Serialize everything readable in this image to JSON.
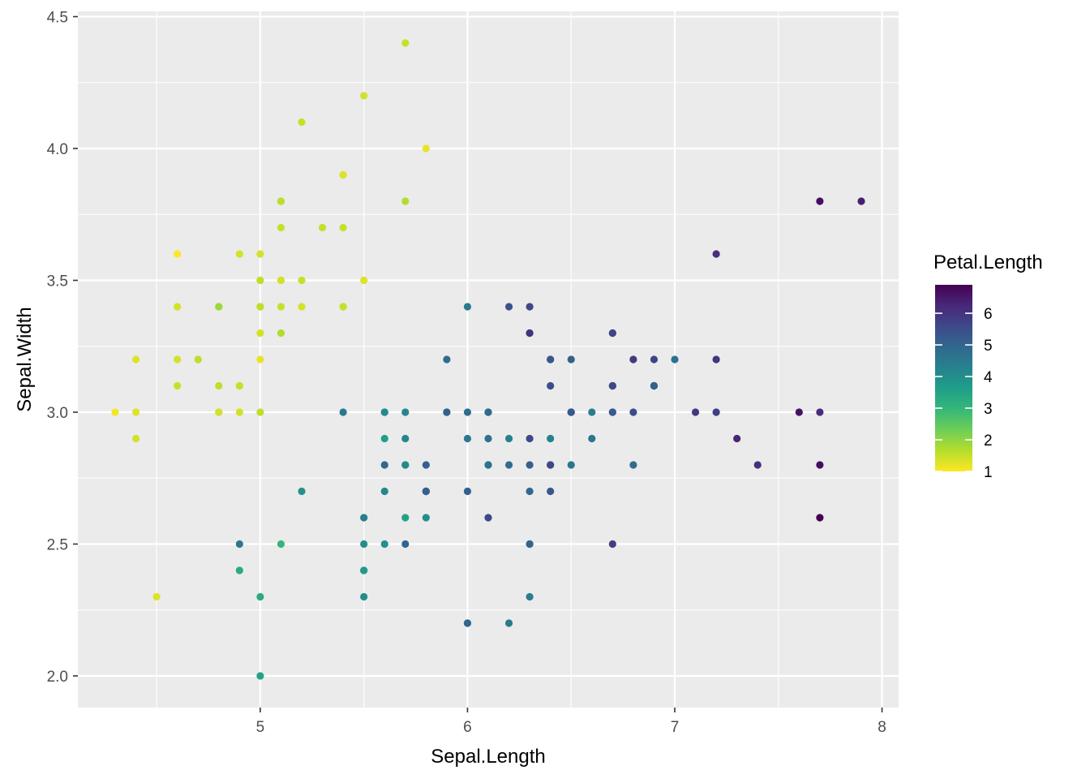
{
  "chart_data": {
    "type": "scatter",
    "title": "",
    "xlabel": "Sepal.Length",
    "ylabel": "Sepal.Width",
    "xlim": [
      4.12,
      8.08
    ],
    "ylim": [
      1.88,
      4.52
    ],
    "x_ticks": [
      5,
      6,
      7,
      8
    ],
    "x_tick_labels": [
      "5",
      "6",
      "7",
      "8"
    ],
    "y_ticks": [
      2.0,
      2.5,
      3.0,
      3.5,
      4.0,
      4.5
    ],
    "y_tick_labels": [
      "2.0",
      "2.5",
      "3.0",
      "3.5",
      "4.0",
      "4.5"
    ],
    "grid": true,
    "background": "#ebebeb",
    "gridline_color": "#ffffff",
    "legend": {
      "title": "Petal.Length",
      "position": "right",
      "type": "colorbar",
      "range": [
        1.0,
        6.9
      ],
      "ticks": [
        1,
        2,
        3,
        4,
        5,
        6
      ],
      "tick_labels": [
        "1",
        "2",
        "3",
        "4",
        "5",
        "6"
      ],
      "palette": "viridis-reversed",
      "colors": [
        "#fde725",
        "#b5de2b",
        "#6ece58",
        "#35b779",
        "#1f9e89",
        "#26828e",
        "#31688e",
        "#3e4989",
        "#482878",
        "#440154"
      ]
    },
    "points": [
      {
        "x": 5.1,
        "y": 3.5,
        "c": 1.4
      },
      {
        "x": 4.9,
        "y": 3.0,
        "c": 1.4
      },
      {
        "x": 4.7,
        "y": 3.2,
        "c": 1.3
      },
      {
        "x": 4.6,
        "y": 3.1,
        "c": 1.5
      },
      {
        "x": 5.0,
        "y": 3.6,
        "c": 1.4
      },
      {
        "x": 5.4,
        "y": 3.9,
        "c": 1.7
      },
      {
        "x": 4.6,
        "y": 3.4,
        "c": 1.4
      },
      {
        "x": 5.0,
        "y": 3.4,
        "c": 1.5
      },
      {
        "x": 4.4,
        "y": 2.9,
        "c": 1.4
      },
      {
        "x": 4.9,
        "y": 3.1,
        "c": 1.5
      },
      {
        "x": 5.4,
        "y": 3.7,
        "c": 1.5
      },
      {
        "x": 4.8,
        "y": 3.4,
        "c": 1.6
      },
      {
        "x": 4.8,
        "y": 3.0,
        "c": 1.4
      },
      {
        "x": 4.3,
        "y": 3.0,
        "c": 1.1
      },
      {
        "x": 5.8,
        "y": 4.0,
        "c": 1.2
      },
      {
        "x": 5.7,
        "y": 4.4,
        "c": 1.5
      },
      {
        "x": 5.4,
        "y": 3.9,
        "c": 1.3
      },
      {
        "x": 5.1,
        "y": 3.5,
        "c": 1.4
      },
      {
        "x": 5.7,
        "y": 3.8,
        "c": 1.7
      },
      {
        "x": 5.1,
        "y": 3.8,
        "c": 1.5
      },
      {
        "x": 5.4,
        "y": 3.4,
        "c": 1.7
      },
      {
        "x": 5.1,
        "y": 3.7,
        "c": 1.5
      },
      {
        "x": 4.6,
        "y": 3.6,
        "c": 1.0
      },
      {
        "x": 5.1,
        "y": 3.3,
        "c": 1.7
      },
      {
        "x": 4.8,
        "y": 3.4,
        "c": 1.9
      },
      {
        "x": 5.0,
        "y": 3.0,
        "c": 1.6
      },
      {
        "x": 5.0,
        "y": 3.4,
        "c": 1.6
      },
      {
        "x": 5.2,
        "y": 3.5,
        "c": 1.5
      },
      {
        "x": 5.2,
        "y": 3.4,
        "c": 1.4
      },
      {
        "x": 4.7,
        "y": 3.2,
        "c": 1.6
      },
      {
        "x": 4.8,
        "y": 3.1,
        "c": 1.6
      },
      {
        "x": 5.4,
        "y": 3.4,
        "c": 1.5
      },
      {
        "x": 5.2,
        "y": 4.1,
        "c": 1.5
      },
      {
        "x": 5.5,
        "y": 4.2,
        "c": 1.4
      },
      {
        "x": 4.9,
        "y": 3.1,
        "c": 1.5
      },
      {
        "x": 5.0,
        "y": 3.2,
        "c": 1.2
      },
      {
        "x": 5.5,
        "y": 3.5,
        "c": 1.3
      },
      {
        "x": 4.9,
        "y": 3.6,
        "c": 1.4
      },
      {
        "x": 4.4,
        "y": 3.0,
        "c": 1.3
      },
      {
        "x": 5.1,
        "y": 3.4,
        "c": 1.5
      },
      {
        "x": 5.0,
        "y": 3.5,
        "c": 1.3
      },
      {
        "x": 4.5,
        "y": 2.3,
        "c": 1.3
      },
      {
        "x": 4.4,
        "y": 3.2,
        "c": 1.3
      },
      {
        "x": 5.0,
        "y": 3.5,
        "c": 1.6
      },
      {
        "x": 5.1,
        "y": 3.8,
        "c": 1.9
      },
      {
        "x": 4.8,
        "y": 3.0,
        "c": 1.4
      },
      {
        "x": 5.1,
        "y": 3.8,
        "c": 1.6
      },
      {
        "x": 4.6,
        "y": 3.2,
        "c": 1.4
      },
      {
        "x": 5.3,
        "y": 3.7,
        "c": 1.5
      },
      {
        "x": 5.0,
        "y": 3.3,
        "c": 1.4
      },
      {
        "x": 7.0,
        "y": 3.2,
        "c": 4.7
      },
      {
        "x": 6.4,
        "y": 3.2,
        "c": 4.5
      },
      {
        "x": 6.9,
        "y": 3.1,
        "c": 4.9
      },
      {
        "x": 5.5,
        "y": 2.3,
        "c": 4.0
      },
      {
        "x": 6.5,
        "y": 2.8,
        "c": 4.6
      },
      {
        "x": 5.7,
        "y": 2.8,
        "c": 4.5
      },
      {
        "x": 6.3,
        "y": 3.3,
        "c": 4.7
      },
      {
        "x": 4.9,
        "y": 2.4,
        "c": 3.3
      },
      {
        "x": 6.6,
        "y": 2.9,
        "c": 4.6
      },
      {
        "x": 5.2,
        "y": 2.7,
        "c": 3.9
      },
      {
        "x": 5.0,
        "y": 2.0,
        "c": 3.5
      },
      {
        "x": 5.9,
        "y": 3.0,
        "c": 4.2
      },
      {
        "x": 6.0,
        "y": 2.2,
        "c": 4.0
      },
      {
        "x": 6.1,
        "y": 2.9,
        "c": 4.7
      },
      {
        "x": 5.6,
        "y": 2.9,
        "c": 3.6
      },
      {
        "x": 6.7,
        "y": 3.1,
        "c": 4.4
      },
      {
        "x": 5.6,
        "y": 3.0,
        "c": 4.5
      },
      {
        "x": 5.8,
        "y": 2.7,
        "c": 4.1
      },
      {
        "x": 6.2,
        "y": 2.2,
        "c": 4.5
      },
      {
        "x": 5.6,
        "y": 2.5,
        "c": 3.9
      },
      {
        "x": 5.9,
        "y": 3.2,
        "c": 4.8
      },
      {
        "x": 6.1,
        "y": 2.8,
        "c": 4.0
      },
      {
        "x": 6.3,
        "y": 2.5,
        "c": 4.9
      },
      {
        "x": 6.1,
        "y": 2.8,
        "c": 4.7
      },
      {
        "x": 6.4,
        "y": 2.9,
        "c": 4.3
      },
      {
        "x": 6.6,
        "y": 3.0,
        "c": 4.4
      },
      {
        "x": 6.8,
        "y": 2.8,
        "c": 4.8
      },
      {
        "x": 6.7,
        "y": 3.0,
        "c": 5.0
      },
      {
        "x": 6.0,
        "y": 2.9,
        "c": 4.5
      },
      {
        "x": 5.7,
        "y": 2.6,
        "c": 3.5
      },
      {
        "x": 5.5,
        "y": 2.4,
        "c": 3.8
      },
      {
        "x": 5.5,
        "y": 2.4,
        "c": 3.7
      },
      {
        "x": 5.8,
        "y": 2.7,
        "c": 3.9
      },
      {
        "x": 6.0,
        "y": 2.7,
        "c": 5.1
      },
      {
        "x": 5.4,
        "y": 3.0,
        "c": 4.5
      },
      {
        "x": 6.0,
        "y": 3.4,
        "c": 4.5
      },
      {
        "x": 6.7,
        "y": 3.1,
        "c": 4.7
      },
      {
        "x": 6.3,
        "y": 2.3,
        "c": 4.4
      },
      {
        "x": 5.6,
        "y": 3.0,
        "c": 4.1
      },
      {
        "x": 5.5,
        "y": 2.5,
        "c": 4.0
      },
      {
        "x": 5.5,
        "y": 2.6,
        "c": 4.4
      },
      {
        "x": 6.1,
        "y": 3.0,
        "c": 4.6
      },
      {
        "x": 5.8,
        "y": 2.6,
        "c": 4.0
      },
      {
        "x": 5.0,
        "y": 2.3,
        "c": 3.3
      },
      {
        "x": 5.6,
        "y": 2.7,
        "c": 4.2
      },
      {
        "x": 5.7,
        "y": 3.0,
        "c": 4.2
      },
      {
        "x": 5.7,
        "y": 2.9,
        "c": 4.2
      },
      {
        "x": 6.2,
        "y": 2.9,
        "c": 4.3
      },
      {
        "x": 5.1,
        "y": 2.5,
        "c": 3.0
      },
      {
        "x": 5.7,
        "y": 2.8,
        "c": 4.1
      },
      {
        "x": 6.3,
        "y": 3.3,
        "c": 6.0
      },
      {
        "x": 5.8,
        "y": 2.7,
        "c": 5.1
      },
      {
        "x": 7.1,
        "y": 3.0,
        "c": 5.9
      },
      {
        "x": 6.3,
        "y": 2.9,
        "c": 5.6
      },
      {
        "x": 6.5,
        "y": 3.0,
        "c": 5.8
      },
      {
        "x": 7.6,
        "y": 3.0,
        "c": 6.6
      },
      {
        "x": 4.9,
        "y": 2.5,
        "c": 4.5
      },
      {
        "x": 7.3,
        "y": 2.9,
        "c": 6.3
      },
      {
        "x": 6.7,
        "y": 2.5,
        "c": 5.8
      },
      {
        "x": 7.2,
        "y": 3.6,
        "c": 6.1
      },
      {
        "x": 6.5,
        "y": 3.2,
        "c": 5.1
      },
      {
        "x": 6.4,
        "y": 2.7,
        "c": 5.3
      },
      {
        "x": 6.8,
        "y": 3.0,
        "c": 5.5
      },
      {
        "x": 5.7,
        "y": 2.5,
        "c": 5.0
      },
      {
        "x": 5.8,
        "y": 2.8,
        "c": 5.1
      },
      {
        "x": 6.4,
        "y": 3.2,
        "c": 5.3
      },
      {
        "x": 6.5,
        "y": 3.0,
        "c": 5.5
      },
      {
        "x": 7.7,
        "y": 3.8,
        "c": 6.7
      },
      {
        "x": 7.7,
        "y": 2.6,
        "c": 6.9
      },
      {
        "x": 6.0,
        "y": 2.2,
        "c": 5.0
      },
      {
        "x": 6.9,
        "y": 3.2,
        "c": 5.7
      },
      {
        "x": 5.6,
        "y": 2.8,
        "c": 4.9
      },
      {
        "x": 7.7,
        "y": 2.8,
        "c": 6.7
      },
      {
        "x": 6.3,
        "y": 2.7,
        "c": 4.9
      },
      {
        "x": 6.7,
        "y": 3.3,
        "c": 5.7
      },
      {
        "x": 7.2,
        "y": 3.2,
        "c": 6.0
      },
      {
        "x": 6.2,
        "y": 2.8,
        "c": 4.8
      },
      {
        "x": 6.1,
        "y": 3.0,
        "c": 4.9
      },
      {
        "x": 6.4,
        "y": 2.8,
        "c": 5.6
      },
      {
        "x": 7.2,
        "y": 3.0,
        "c": 5.8
      },
      {
        "x": 7.4,
        "y": 2.8,
        "c": 6.1
      },
      {
        "x": 7.9,
        "y": 3.8,
        "c": 6.4
      },
      {
        "x": 6.4,
        "y": 2.8,
        "c": 5.6
      },
      {
        "x": 6.3,
        "y": 2.8,
        "c": 5.1
      },
      {
        "x": 6.1,
        "y": 2.6,
        "c": 5.6
      },
      {
        "x": 7.7,
        "y": 3.0,
        "c": 6.1
      },
      {
        "x": 6.3,
        "y": 3.4,
        "c": 5.6
      },
      {
        "x": 6.4,
        "y": 3.1,
        "c": 5.5
      },
      {
        "x": 6.0,
        "y": 3.0,
        "c": 4.8
      },
      {
        "x": 6.9,
        "y": 3.1,
        "c": 5.4
      },
      {
        "x": 6.7,
        "y": 3.1,
        "c": 5.6
      },
      {
        "x": 6.9,
        "y": 3.1,
        "c": 5.1
      },
      {
        "x": 5.8,
        "y": 2.7,
        "c": 5.1
      },
      {
        "x": 6.8,
        "y": 3.2,
        "c": 5.9
      },
      {
        "x": 6.7,
        "y": 3.3,
        "c": 5.7
      },
      {
        "x": 6.7,
        "y": 3.0,
        "c": 5.2
      },
      {
        "x": 6.3,
        "y": 2.5,
        "c": 5.0
      },
      {
        "x": 6.5,
        "y": 3.0,
        "c": 5.2
      },
      {
        "x": 6.2,
        "y": 3.4,
        "c": 5.4
      },
      {
        "x": 5.9,
        "y": 3.0,
        "c": 5.1
      }
    ]
  }
}
